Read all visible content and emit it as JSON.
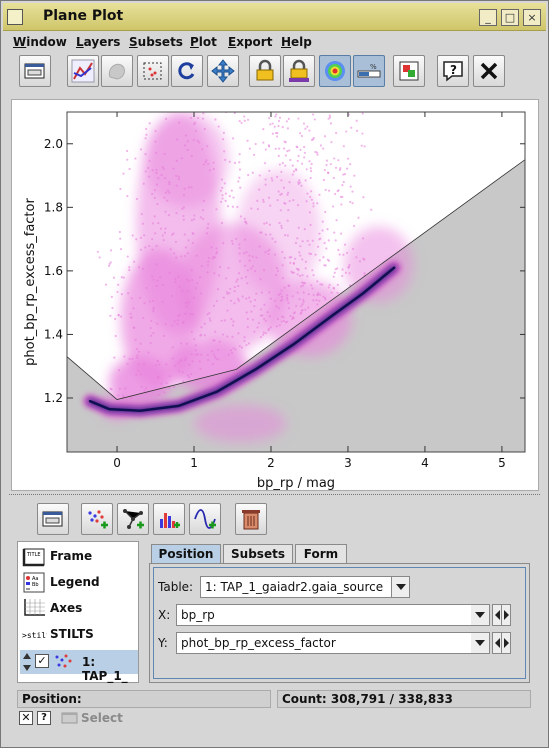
{
  "window": {
    "title": "Plane Plot",
    "buttons": [
      "_",
      "□",
      "×"
    ]
  },
  "menu": [
    {
      "label": "Window",
      "mnemonic": "W"
    },
    {
      "label": "Layers",
      "mnemonic": "L"
    },
    {
      "label": "Subsets",
      "mnemonic": "S"
    },
    {
      "label": "Plot",
      "mnemonic": "P"
    },
    {
      "label": "Export",
      "mnemonic": "E"
    },
    {
      "label": "Help",
      "mnemonic": "H"
    }
  ],
  "toolbar_icons": [
    "window-icon",
    "blob-subset-icon",
    "disabled-subset-icon",
    "zoom-rect-icon",
    "replot-icon",
    "navigate-icon",
    "lock-axes-icon",
    "lock-aspect-icon",
    "density-map-icon",
    "progress-bar-icon",
    "colour-legend-icon",
    "help-icon",
    "close-icon"
  ],
  "plot": {
    "xlabel": "bp_rp / mag",
    "ylabel": "phot_bp_rp_excess_factor",
    "xlim": [
      -0.65,
      5.3
    ],
    "ylim": [
      1.03,
      2.1
    ],
    "xticks": [
      "0",
      "1",
      "2",
      "3",
      "4",
      "5"
    ],
    "yticks": [
      "1.2",
      "1.4",
      "1.6",
      "1.8",
      "2.0"
    ],
    "colors": {
      "points": "#e67ad8",
      "core": "#1a1a7a",
      "background_shade": "#c8c8c8"
    }
  },
  "control_icons": [
    "control-window-icon",
    "add-scatter-icon",
    "add-pairs-icon",
    "add-histogram-icon",
    "add-function-icon",
    "delete-layer-icon"
  ],
  "layers": [
    {
      "label": "Frame",
      "icon": "frame-icon"
    },
    {
      "label": "Legend",
      "icon": "legend-icon"
    },
    {
      "label": "Axes",
      "icon": "axes-icon"
    },
    {
      "label": "STILTS",
      "icon": "stilts-icon"
    },
    {
      "label": "1: TAP_1_",
      "icon": "scatter-layer-icon",
      "selected": true
    }
  ],
  "tabs": [
    "Position",
    "Subsets",
    "Form"
  ],
  "form": {
    "table_label": "Table:",
    "table_value": "1: TAP_1_gaiadr2.gaia_source",
    "x_label": "X:",
    "x_value": "bp_rp",
    "y_label": "Y:",
    "y_value": "phot_bp_rp_excess_factor"
  },
  "status": {
    "position_label": "Position:",
    "count_text": "Count: 308,791 / 338,833"
  },
  "bottom": {
    "select_label": "Select"
  }
}
